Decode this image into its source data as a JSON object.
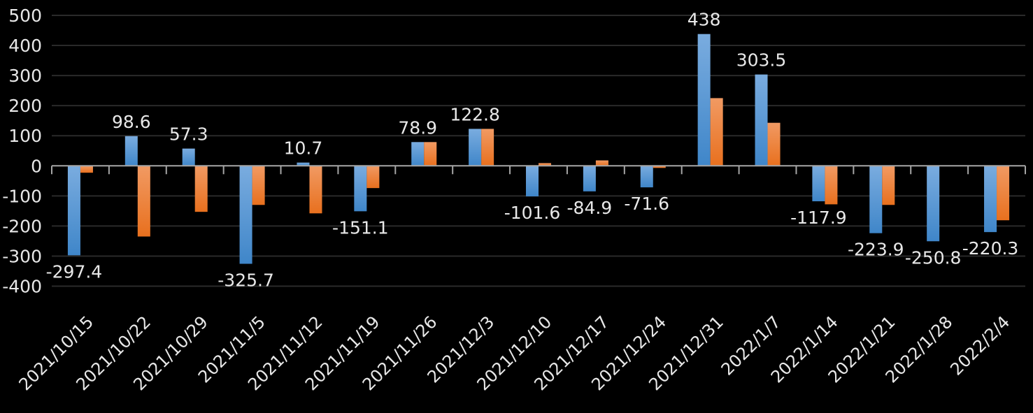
{
  "chart_data": {
    "type": "bar",
    "title": "",
    "xlabel": "",
    "ylabel": "",
    "ylim": [
      -400,
      500
    ],
    "yticks": [
      500,
      400,
      300,
      200,
      100,
      0,
      -100,
      -200,
      -300,
      -400
    ],
    "grid": true,
    "legend": "none",
    "categories": [
      "2021/10/15",
      "2021/10/22",
      "2021/10/29",
      "2021/11/5",
      "2021/11/12",
      "2021/11/19",
      "2021/11/26",
      "2021/12/3",
      "2021/12/10",
      "2021/12/17",
      "2021/12/24",
      "2021/12/31",
      "2022/1/7",
      "2022/1/14",
      "2022/1/21",
      "2022/1/28",
      "2022/2/4"
    ],
    "series": [
      {
        "color": "#5b9bd5",
        "values": [
          -297.4,
          98.6,
          57.3,
          -325.7,
          10.7,
          -151.1,
          78.9,
          122.8,
          -101.6,
          -84.9,
          -71.6,
          438,
          303.5,
          -117.9,
          -223.9,
          -250.8,
          -220.3
        ],
        "labels": [
          "-297.4",
          "98.6",
          "57.3",
          "-325.7",
          "10.7",
          "-151.1",
          "78.9",
          "122.8",
          "-101.6",
          "-84.9",
          "-71.6",
          "438",
          "303.5",
          "-117.9",
          "-223.9",
          "-250.8",
          "-220.3"
        ]
      },
      {
        "color": "#ed7d31",
        "values": [
          -23,
          -235,
          -153,
          -130,
          -158,
          -74,
          78.9,
          122.8,
          9,
          18,
          -7,
          225,
          143,
          -128,
          -130,
          0,
          -181
        ]
      }
    ]
  }
}
